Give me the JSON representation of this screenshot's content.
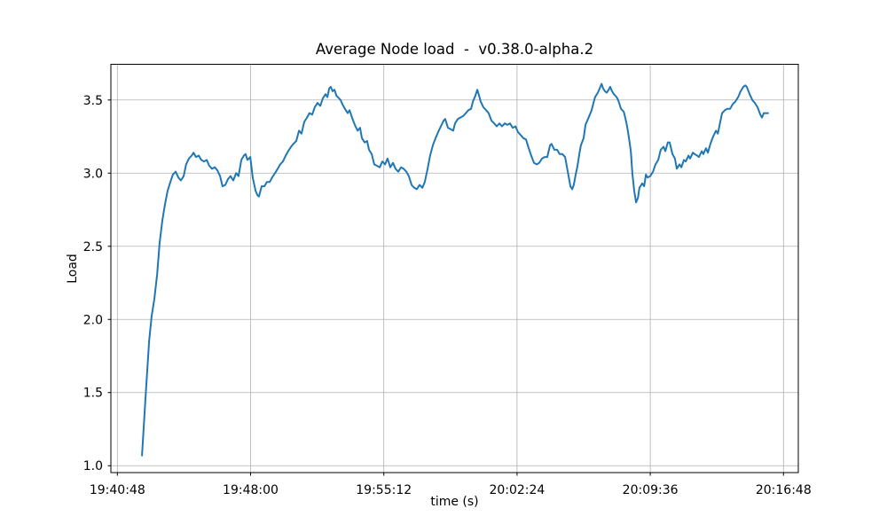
{
  "chart_data": {
    "type": "line",
    "title": "Average Node load  -  v0.38.0-alpha.2",
    "xlabel": "time (s)",
    "ylabel": "Load",
    "grid": true,
    "legend": "none",
    "line_color": "#1f77b4",
    "grid_color": "#b0b0b0",
    "spine_color": "#000000",
    "x_axis": {
      "tick_labels": [
        "19:40:48",
        "19:48:00",
        "19:55:12",
        "20:02:24",
        "20:09:36",
        "20:16:48"
      ],
      "tick_seconds": [
        0,
        432,
        864,
        1296,
        1728,
        2160
      ],
      "xlim_seconds": [
        -21,
        2208
      ]
    },
    "y_axis": {
      "tick_labels": [
        "1.0",
        "1.5",
        "2.0",
        "2.5",
        "3.0",
        "3.5"
      ],
      "ticks": [
        1.0,
        1.5,
        2.0,
        2.5,
        3.0,
        3.5
      ],
      "ylim": [
        0.953,
        3.744
      ]
    },
    "series": [
      {
        "name": "average-node-load",
        "points": [
          [
            80,
            1.07
          ],
          [
            91,
            1.45
          ],
          [
            103,
            1.85
          ],
          [
            111,
            2.02
          ],
          [
            120,
            2.14
          ],
          [
            129,
            2.31
          ],
          [
            137,
            2.52
          ],
          [
            146,
            2.68
          ],
          [
            154,
            2.78
          ],
          [
            163,
            2.88
          ],
          [
            172,
            2.94
          ],
          [
            180,
            2.99
          ],
          [
            189,
            3.01
          ],
          [
            198,
            2.97
          ],
          [
            206,
            2.95
          ],
          [
            215,
            2.98
          ],
          [
            223,
            3.06
          ],
          [
            232,
            3.1
          ],
          [
            241,
            3.12
          ],
          [
            247,
            3.14
          ],
          [
            255,
            3.11
          ],
          [
            264,
            3.12
          ],
          [
            272,
            3.09
          ],
          [
            281,
            3.08
          ],
          [
            290,
            3.09
          ],
          [
            298,
            3.05
          ],
          [
            307,
            3.03
          ],
          [
            316,
            3.04
          ],
          [
            324,
            3.02
          ],
          [
            333,
            2.98
          ],
          [
            341,
            2.91
          ],
          [
            350,
            2.92
          ],
          [
            359,
            2.96
          ],
          [
            367,
            2.98
          ],
          [
            376,
            2.95
          ],
          [
            385,
            3.0
          ],
          [
            393,
            2.98
          ],
          [
            402,
            3.09
          ],
          [
            410,
            3.12
          ],
          [
            416,
            3.13
          ],
          [
            422,
            3.09
          ],
          [
            431,
            3.11
          ],
          [
            439,
            2.97
          ],
          [
            448,
            2.88
          ],
          [
            454,
            2.85
          ],
          [
            459,
            2.84
          ],
          [
            468,
            2.91
          ],
          [
            477,
            2.91
          ],
          [
            485,
            2.94
          ],
          [
            494,
            2.94
          ],
          [
            502,
            2.97
          ],
          [
            511,
            3.0
          ],
          [
            520,
            3.03
          ],
          [
            528,
            3.06
          ],
          [
            537,
            3.08
          ],
          [
            546,
            3.12
          ],
          [
            554,
            3.15
          ],
          [
            563,
            3.18
          ],
          [
            571,
            3.2
          ],
          [
            580,
            3.22
          ],
          [
            589,
            3.29
          ],
          [
            597,
            3.27
          ],
          [
            606,
            3.35
          ],
          [
            615,
            3.38
          ],
          [
            623,
            3.41
          ],
          [
            632,
            3.4
          ],
          [
            640,
            3.45
          ],
          [
            649,
            3.48
          ],
          [
            658,
            3.46
          ],
          [
            666,
            3.51
          ],
          [
            675,
            3.54
          ],
          [
            681,
            3.52
          ],
          [
            687,
            3.58
          ],
          [
            692,
            3.59
          ],
          [
            698,
            3.56
          ],
          [
            704,
            3.57
          ],
          [
            710,
            3.53
          ],
          [
            715,
            3.52
          ],
          [
            724,
            3.5
          ],
          [
            730,
            3.47
          ],
          [
            738,
            3.44
          ],
          [
            747,
            3.41
          ],
          [
            753,
            3.43
          ],
          [
            761,
            3.38
          ],
          [
            770,
            3.33
          ],
          [
            779,
            3.29
          ],
          [
            787,
            3.31
          ],
          [
            793,
            3.24
          ],
          [
            802,
            3.21
          ],
          [
            810,
            3.22
          ],
          [
            816,
            3.16
          ],
          [
            825,
            3.13
          ],
          [
            833,
            3.06
          ],
          [
            842,
            3.05
          ],
          [
            851,
            3.04
          ],
          [
            859,
            3.08
          ],
          [
            868,
            3.06
          ],
          [
            876,
            3.1
          ],
          [
            885,
            3.04
          ],
          [
            894,
            3.07
          ],
          [
            902,
            3.03
          ],
          [
            911,
            3.01
          ],
          [
            920,
            3.04
          ],
          [
            928,
            3.03
          ],
          [
            937,
            3.01
          ],
          [
            945,
            2.98
          ],
          [
            954,
            2.92
          ],
          [
            963,
            2.9
          ],
          [
            971,
            2.89
          ],
          [
            980,
            2.92
          ],
          [
            989,
            2.9
          ],
          [
            997,
            2.94
          ],
          [
            1006,
            3.03
          ],
          [
            1014,
            3.12
          ],
          [
            1023,
            3.19
          ],
          [
            1032,
            3.24
          ],
          [
            1040,
            3.28
          ],
          [
            1049,
            3.32
          ],
          [
            1058,
            3.36
          ],
          [
            1063,
            3.37
          ],
          [
            1072,
            3.31
          ],
          [
            1081,
            3.3
          ],
          [
            1089,
            3.29
          ],
          [
            1095,
            3.34
          ],
          [
            1104,
            3.37
          ],
          [
            1112,
            3.38
          ],
          [
            1121,
            3.39
          ],
          [
            1130,
            3.41
          ],
          [
            1138,
            3.43
          ],
          [
            1147,
            3.44
          ],
          [
            1153,
            3.49
          ],
          [
            1161,
            3.53
          ],
          [
            1167,
            3.57
          ],
          [
            1173,
            3.53
          ],
          [
            1178,
            3.49
          ],
          [
            1187,
            3.45
          ],
          [
            1196,
            3.43
          ],
          [
            1204,
            3.41
          ],
          [
            1213,
            3.36
          ],
          [
            1222,
            3.34
          ],
          [
            1230,
            3.32
          ],
          [
            1239,
            3.34
          ],
          [
            1247,
            3.32
          ],
          [
            1256,
            3.34
          ],
          [
            1265,
            3.33
          ],
          [
            1273,
            3.34
          ],
          [
            1282,
            3.31
          ],
          [
            1291,
            3.32
          ],
          [
            1299,
            3.28
          ],
          [
            1308,
            3.26
          ],
          [
            1316,
            3.24
          ],
          [
            1325,
            3.23
          ],
          [
            1334,
            3.17
          ],
          [
            1342,
            3.12
          ],
          [
            1351,
            3.07
          ],
          [
            1360,
            3.06
          ],
          [
            1368,
            3.07
          ],
          [
            1377,
            3.1
          ],
          [
            1385,
            3.11
          ],
          [
            1394,
            3.11
          ],
          [
            1403,
            3.19
          ],
          [
            1408,
            3.2
          ],
          [
            1417,
            3.16
          ],
          [
            1426,
            3.16
          ],
          [
            1434,
            3.13
          ],
          [
            1443,
            3.13
          ],
          [
            1452,
            3.11
          ],
          [
            1457,
            3.05
          ],
          [
            1463,
            2.98
          ],
          [
            1469,
            2.91
          ],
          [
            1475,
            2.89
          ],
          [
            1480,
            2.92
          ],
          [
            1486,
            2.99
          ],
          [
            1492,
            3.05
          ],
          [
            1498,
            3.13
          ],
          [
            1503,
            3.19
          ],
          [
            1512,
            3.24
          ],
          [
            1518,
            3.33
          ],
          [
            1524,
            3.36
          ],
          [
            1532,
            3.4
          ],
          [
            1538,
            3.43
          ],
          [
            1544,
            3.48
          ],
          [
            1549,
            3.52
          ],
          [
            1558,
            3.55
          ],
          [
            1564,
            3.58
          ],
          [
            1570,
            3.61
          ],
          [
            1575,
            3.58
          ],
          [
            1581,
            3.56
          ],
          [
            1587,
            3.55
          ],
          [
            1593,
            3.57
          ],
          [
            1598,
            3.59
          ],
          [
            1604,
            3.56
          ],
          [
            1610,
            3.54
          ],
          [
            1619,
            3.52
          ],
          [
            1624,
            3.5
          ],
          [
            1633,
            3.44
          ],
          [
            1642,
            3.42
          ],
          [
            1647,
            3.38
          ],
          [
            1653,
            3.32
          ],
          [
            1659,
            3.24
          ],
          [
            1665,
            3.15
          ],
          [
            1670,
            3.0
          ],
          [
            1676,
            2.88
          ],
          [
            1682,
            2.8
          ],
          [
            1688,
            2.83
          ],
          [
            1693,
            2.9
          ],
          [
            1702,
            2.93
          ],
          [
            1708,
            2.91
          ],
          [
            1714,
            2.99
          ],
          [
            1719,
            2.97
          ],
          [
            1728,
            2.98
          ],
          [
            1737,
            3.01
          ],
          [
            1745,
            3.06
          ],
          [
            1754,
            3.09
          ],
          [
            1762,
            3.16
          ],
          [
            1771,
            3.18
          ],
          [
            1777,
            3.15
          ],
          [
            1785,
            3.21
          ],
          [
            1791,
            3.21
          ],
          [
            1800,
            3.13
          ],
          [
            1808,
            3.1
          ],
          [
            1814,
            3.03
          ],
          [
            1823,
            3.06
          ],
          [
            1829,
            3.04
          ],
          [
            1837,
            3.09
          ],
          [
            1843,
            3.08
          ],
          [
            1852,
            3.12
          ],
          [
            1857,
            3.1
          ],
          [
            1866,
            3.14
          ],
          [
            1872,
            3.13
          ],
          [
            1880,
            3.12
          ],
          [
            1886,
            3.11
          ],
          [
            1895,
            3.15
          ],
          [
            1900,
            3.13
          ],
          [
            1909,
            3.17
          ],
          [
            1915,
            3.14
          ],
          [
            1923,
            3.2
          ],
          [
            1932,
            3.25
          ],
          [
            1941,
            3.29
          ],
          [
            1947,
            3.27
          ],
          [
            1955,
            3.35
          ],
          [
            1961,
            3.41
          ],
          [
            1970,
            3.43
          ],
          [
            1978,
            3.44
          ],
          [
            1987,
            3.44
          ],
          [
            1995,
            3.47
          ],
          [
            2004,
            3.49
          ],
          [
            2013,
            3.52
          ],
          [
            2021,
            3.56
          ],
          [
            2030,
            3.59
          ],
          [
            2036,
            3.6
          ],
          [
            2041,
            3.59
          ],
          [
            2050,
            3.54
          ],
          [
            2059,
            3.5
          ],
          [
            2067,
            3.48
          ],
          [
            2076,
            3.45
          ],
          [
            2085,
            3.4
          ],
          [
            2090,
            3.38
          ],
          [
            2096,
            3.41
          ],
          [
            2102,
            3.41
          ],
          [
            2110,
            3.41
          ]
        ]
      }
    ]
  }
}
